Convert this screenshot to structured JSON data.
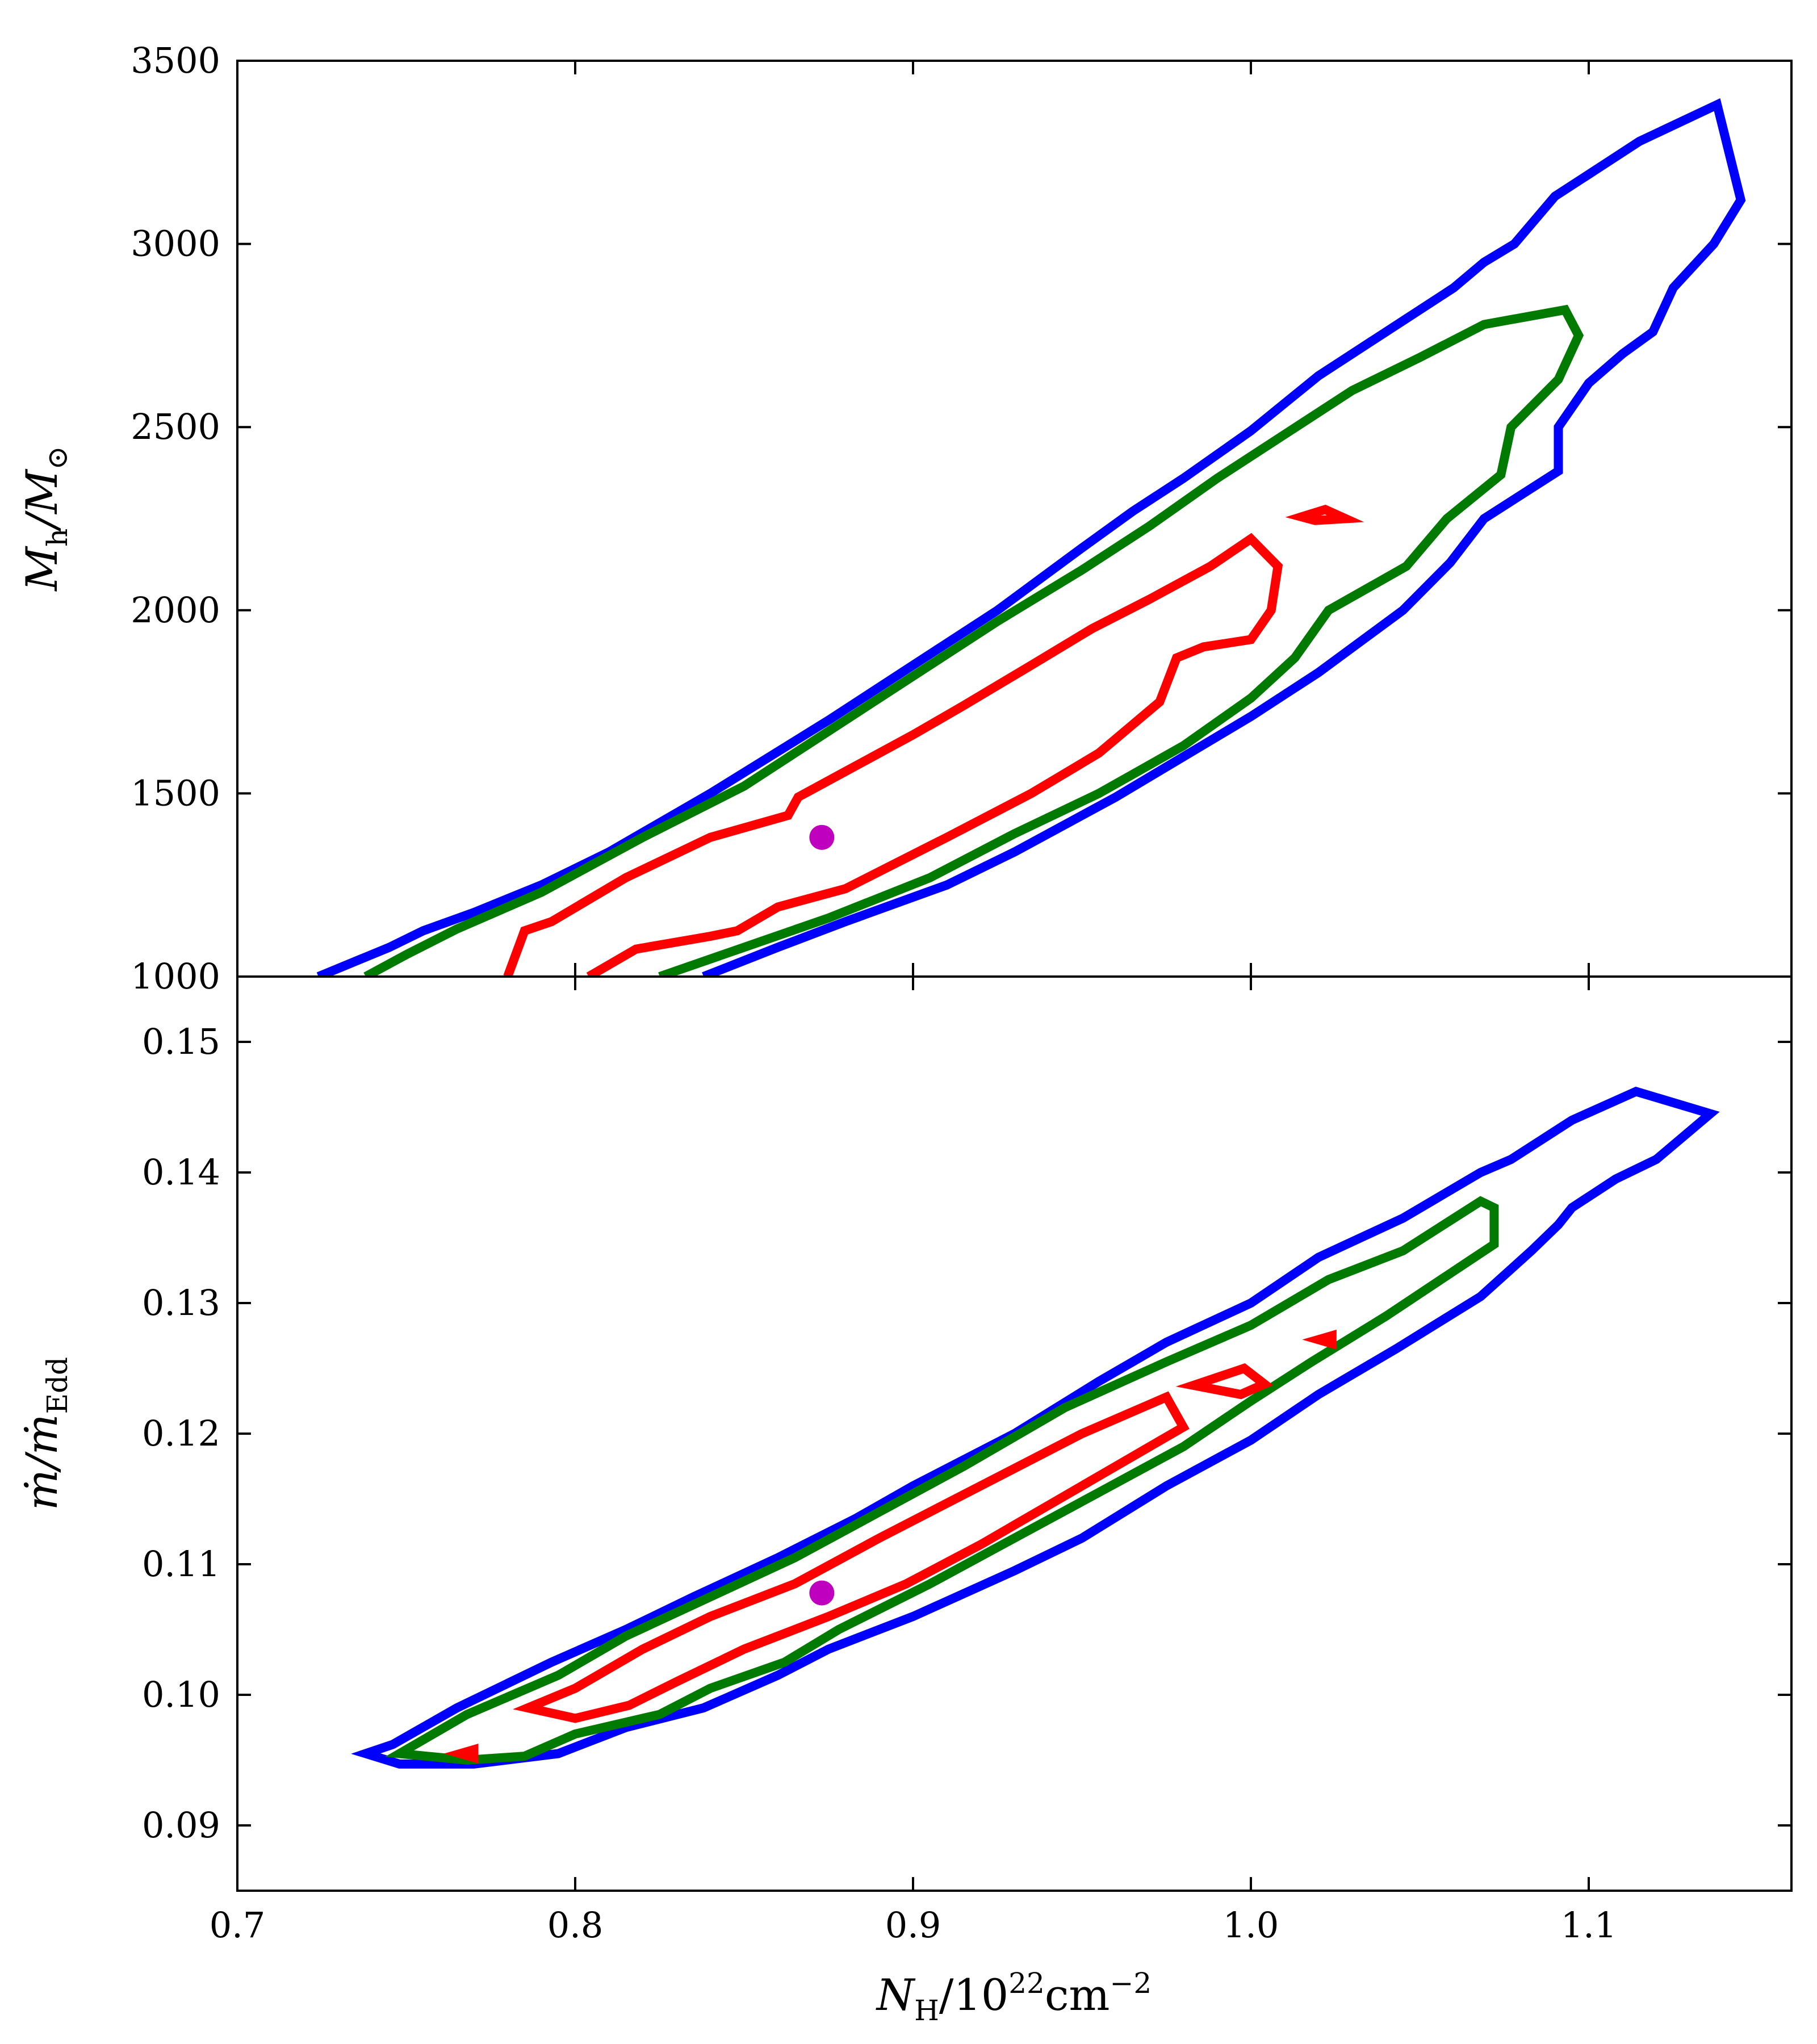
{
  "figure": {
    "xlabel": {
      "main": "N",
      "sub": "H",
      "rest": "/10",
      "sup": "22",
      "unit": "cm",
      "unit_sup": "−2"
    },
    "top_ylabel": {
      "main": "M",
      "sub": "h",
      "rest": "/M",
      "sub2": "⊙"
    },
    "bottom_ylabel": {
      "main": "ṁ",
      "rest": "/ṁ",
      "sub": "Edd"
    }
  },
  "chart_data": [
    {
      "type": "contour",
      "panel": "top",
      "ylabel": "M_h/M_⊙",
      "xlim": [
        0.7,
        1.16
      ],
      "ylim": [
        1000,
        3500
      ],
      "xticks": [
        0.7,
        0.8,
        0.9,
        1.0,
        1.1
      ],
      "yticks": [
        1000,
        1500,
        2000,
        2500,
        3000,
        3500
      ],
      "ytick_labels": [
        "1000",
        "1500",
        "2000",
        "2500",
        "3000",
        "3500"
      ],
      "best_fit": {
        "x": 0.873,
        "y": 1380,
        "color": "#bf00bf"
      },
      "contours": [
        {
          "level": "outer",
          "color": "#0000ff",
          "closed": false,
          "points": [
            [
              0.724,
              1000
            ],
            [
              0.745,
              1080
            ],
            [
              0.755,
              1125
            ],
            [
              0.77,
              1175
            ],
            [
              0.79,
              1250
            ],
            [
              0.81,
              1340
            ],
            [
              0.84,
              1500
            ],
            [
              0.875,
              1700
            ],
            [
              0.9,
              1850
            ],
            [
              0.925,
              2000
            ],
            [
              0.95,
              2170
            ],
            [
              0.965,
              2270
            ],
            [
              0.98,
              2360
            ],
            [
              1.0,
              2490
            ],
            [
              1.02,
              2640
            ],
            [
              1.04,
              2760
            ],
            [
              1.06,
              2880
            ],
            [
              1.069,
              2950
            ],
            [
              1.078,
              3000
            ],
            [
              1.09,
              3130
            ],
            [
              1.105,
              3220
            ],
            [
              1.115,
              3280
            ],
            [
              1.138,
              3380
            ],
            [
              1.145,
              3120
            ],
            [
              1.137,
              3000
            ],
            [
              1.125,
              2880
            ],
            [
              1.119,
              2760
            ],
            [
              1.11,
              2700
            ],
            [
              1.1,
              2620
            ],
            [
              1.091,
              2500
            ],
            [
              1.091,
              2380
            ],
            [
              1.069,
              2250
            ],
            [
              1.059,
              2130
            ],
            [
              1.045,
              2000
            ],
            [
              1.02,
              1830
            ],
            [
              1.0,
              1710
            ],
            [
              0.98,
              1600
            ],
            [
              0.96,
              1490
            ],
            [
              0.93,
              1340
            ],
            [
              0.91,
              1250
            ],
            [
              0.88,
              1150
            ],
            [
              0.86,
              1080
            ],
            [
              0.838,
              1000
            ]
          ]
        },
        {
          "level": "middle",
          "color": "#007a00",
          "closed": false,
          "points": [
            [
              0.738,
              1000
            ],
            [
              0.75,
              1060
            ],
            [
              0.765,
              1130
            ],
            [
              0.79,
              1230
            ],
            [
              0.82,
              1380
            ],
            [
              0.85,
              1520
            ],
            [
              0.88,
              1700
            ],
            [
              0.9,
              1820
            ],
            [
              0.925,
              1970
            ],
            [
              0.95,
              2110
            ],
            [
              0.97,
              2230
            ],
            [
              0.99,
              2360
            ],
            [
              1.01,
              2480
            ],
            [
              1.03,
              2600
            ],
            [
              1.05,
              2690
            ],
            [
              1.069,
              2780
            ],
            [
              1.093,
              2820
            ],
            [
              1.097,
              2750
            ],
            [
              1.091,
              2630
            ],
            [
              1.077,
              2500
            ],
            [
              1.074,
              2370
            ],
            [
              1.058,
              2250
            ],
            [
              1.046,
              2120
            ],
            [
              1.023,
              2000
            ],
            [
              1.013,
              1870
            ],
            [
              1.0,
              1760
            ],
            [
              0.98,
              1630
            ],
            [
              0.955,
              1500
            ],
            [
              0.93,
              1390
            ],
            [
              0.905,
              1270
            ],
            [
              0.875,
              1160
            ],
            [
              0.85,
              1080
            ],
            [
              0.825,
              1000
            ]
          ]
        },
        {
          "level": "inner",
          "color": "#ff0000",
          "closed": false,
          "points": [
            [
              0.78,
              1000
            ],
            [
              0.785,
              1125
            ],
            [
              0.793,
              1150
            ],
            [
              0.815,
              1270
            ],
            [
              0.84,
              1380
            ],
            [
              0.863,
              1440
            ],
            [
              0.866,
              1490
            ],
            [
              0.88,
              1560
            ],
            [
              0.9,
              1660
            ],
            [
              0.915,
              1740
            ],
            [
              0.935,
              1850
            ],
            [
              0.953,
              1950
            ],
            [
              0.97,
              2030
            ],
            [
              0.988,
              2120
            ],
            [
              1.0,
              2195
            ],
            [
              1.008,
              2120
            ],
            [
              1.006,
              2000
            ],
            [
              1.0,
              1920
            ],
            [
              0.986,
              1900
            ],
            [
              0.978,
              1870
            ],
            [
              0.973,
              1750
            ],
            [
              0.955,
              1610
            ],
            [
              0.935,
              1500
            ],
            [
              0.91,
              1380
            ],
            [
              0.88,
              1240
            ],
            [
              0.86,
              1190
            ],
            [
              0.848,
              1125
            ],
            [
              0.84,
              1110
            ],
            [
              0.818,
              1075
            ],
            [
              0.804,
              1000
            ]
          ]
        },
        {
          "level": "inner-island",
          "color": "#ff0000",
          "closed": true,
          "points": [
            [
              1.015,
              2255
            ],
            [
              1.022,
              2275
            ],
            [
              1.028,
              2250
            ],
            [
              1.019,
              2245
            ],
            [
              1.015,
              2255
            ]
          ]
        }
      ]
    },
    {
      "type": "contour",
      "panel": "bottom",
      "xlabel": "N_H/10^22 cm^-2",
      "ylabel": "ṁ/ṁ_Edd",
      "xlim": [
        0.7,
        1.16
      ],
      "ylim": [
        0.085,
        0.155
      ],
      "xticks": [
        0.7,
        0.8,
        0.9,
        1.0,
        1.1
      ],
      "xtick_labels": [
        "0.7",
        "0.8",
        "0.9",
        "1.0",
        "1.1"
      ],
      "yticks": [
        0.09,
        0.1,
        0.11,
        0.12,
        0.13,
        0.14,
        0.15
      ],
      "ytick_labels": [
        "0.09",
        "0.10",
        "0.11",
        "0.12",
        "0.13",
        "0.14",
        "0.15"
      ],
      "best_fit": {
        "x": 0.873,
        "y": 0.1078,
        "color": "#bf00bf"
      },
      "contours": [
        {
          "level": "outer",
          "color": "#0000ff",
          "closed": true,
          "points": [
            [
              0.738,
              0.0955
            ],
            [
              0.746,
              0.0962
            ],
            [
              0.765,
              0.099
            ],
            [
              0.793,
              0.1025
            ],
            [
              0.815,
              0.105
            ],
            [
              0.835,
              0.1075
            ],
            [
              0.86,
              0.1105
            ],
            [
              0.883,
              0.1135
            ],
            [
              0.9,
              0.116
            ],
            [
              0.93,
              0.12
            ],
            [
              0.955,
              0.124
            ],
            [
              0.975,
              0.127
            ],
            [
              1.0,
              0.13
            ],
            [
              1.02,
              0.1335
            ],
            [
              1.045,
              0.1365
            ],
            [
              1.068,
              0.14
            ],
            [
              1.077,
              0.141
            ],
            [
              1.095,
              0.144
            ],
            [
              1.114,
              0.1462
            ],
            [
              1.136,
              0.1445
            ],
            [
              1.12,
              0.141
            ],
            [
              1.108,
              0.1395
            ],
            [
              1.095,
              0.1373
            ],
            [
              1.091,
              0.136
            ],
            [
              1.083,
              0.134
            ],
            [
              1.068,
              0.1305
            ],
            [
              1.043,
              0.1265
            ],
            [
              1.02,
              0.123
            ],
            [
              1.0,
              0.1195
            ],
            [
              0.975,
              0.116
            ],
            [
              0.95,
              0.112
            ],
            [
              0.93,
              0.1095
            ],
            [
              0.9,
              0.106
            ],
            [
              0.875,
              0.1035
            ],
            [
              0.86,
              0.1015
            ],
            [
              0.838,
              0.099
            ],
            [
              0.815,
              0.0975
            ],
            [
              0.795,
              0.0955
            ],
            [
              0.77,
              0.0947
            ],
            [
              0.748,
              0.0947
            ],
            [
              0.738,
              0.0955
            ]
          ]
        },
        {
          "level": "middle",
          "color": "#007a00",
          "closed": true,
          "points": [
            [
              0.748,
              0.0955
            ],
            [
              0.768,
              0.0985
            ],
            [
              0.795,
              0.1015
            ],
            [
              0.815,
              0.1045
            ],
            [
              0.84,
              0.1075
            ],
            [
              0.865,
              0.1105
            ],
            [
              0.89,
              0.114
            ],
            [
              0.915,
              0.1175
            ],
            [
              0.945,
              0.122
            ],
            [
              0.975,
              0.1255
            ],
            [
              1.0,
              0.1283
            ],
            [
              1.023,
              0.1318
            ],
            [
              1.045,
              0.134
            ],
            [
              1.068,
              0.1378
            ],
            [
              1.072,
              0.1373
            ],
            [
              1.072,
              0.1345
            ],
            [
              1.065,
              0.1333
            ],
            [
              1.04,
              0.129
            ],
            [
              1.018,
              0.1255
            ],
            [
              1.0,
              0.1225
            ],
            [
              0.98,
              0.119
            ],
            [
              0.955,
              0.1155
            ],
            [
              0.93,
              0.112
            ],
            [
              0.905,
              0.1085
            ],
            [
              0.878,
              0.105
            ],
            [
              0.862,
              0.1025
            ],
            [
              0.84,
              0.1005
            ],
            [
              0.825,
              0.0985
            ],
            [
              0.8,
              0.097
            ],
            [
              0.785,
              0.0953
            ],
            [
              0.768,
              0.095
            ],
            [
              0.748,
              0.0955
            ]
          ]
        },
        {
          "level": "inner",
          "color": "#ff0000",
          "closed": true,
          "points": [
            [
              0.786,
              0.099
            ],
            [
              0.8,
              0.1005
            ],
            [
              0.82,
              0.1035
            ],
            [
              0.84,
              0.106
            ],
            [
              0.865,
              0.1085
            ],
            [
              0.89,
              0.112
            ],
            [
              0.92,
              0.116
            ],
            [
              0.95,
              0.12
            ],
            [
              0.975,
              0.1228
            ],
            [
              0.98,
              0.1205
            ],
            [
              0.96,
              0.1175
            ],
            [
              0.94,
              0.1145
            ],
            [
              0.92,
              0.1115
            ],
            [
              0.898,
              0.1085
            ],
            [
              0.875,
              0.106
            ],
            [
              0.85,
              0.1035
            ],
            [
              0.83,
              0.101
            ],
            [
              0.816,
              0.0992
            ],
            [
              0.8,
              0.0982
            ],
            [
              0.786,
              0.099
            ]
          ]
        },
        {
          "level": "inner-island",
          "color": "#ff0000",
          "closed": true,
          "points": [
            [
              0.983,
              0.1237
            ],
            [
              0.998,
              0.125
            ],
            [
              1.004,
              0.1238
            ],
            [
              0.997,
              0.123
            ],
            [
              0.983,
              0.1237
            ]
          ]
        },
        {
          "level": "inner-island",
          "color": "#ff0000",
          "closed": true,
          "points": [
            [
              1.02,
              0.1272
            ],
            [
              1.024,
              0.1275
            ],
            [
              1.024,
              0.1269
            ],
            [
              1.02,
              0.1272
            ]
          ]
        },
        {
          "level": "inner-island",
          "color": "#ff0000",
          "closed": true,
          "points": [
            [
              0.766,
              0.0955
            ],
            [
              0.77,
              0.0958
            ],
            [
              0.77,
              0.0952
            ],
            [
              0.766,
              0.0955
            ]
          ]
        }
      ]
    }
  ]
}
